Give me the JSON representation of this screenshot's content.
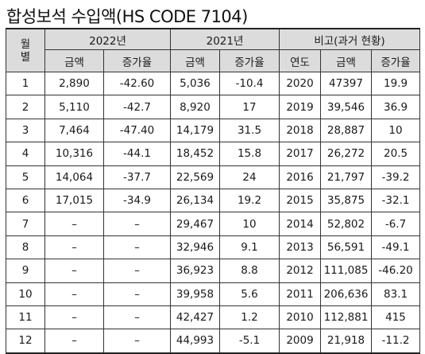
{
  "title": "합성보석 수입액(HS CODE 7104)",
  "headers": {
    "month": "월\n별",
    "y2022": "2022년",
    "y2021": "2021년",
    "compare": "비고(과거 현황)",
    "amount": "금액",
    "growth": "증가율",
    "year": "연도"
  },
  "rows": [
    [
      "1",
      "2,890",
      "-42.60",
      "5,036",
      "-10.4",
      "2020",
      "47397",
      "19.9"
    ],
    [
      "2",
      "5,110",
      "-42.7",
      "8,920",
      "17",
      "2019",
      "39,546",
      "36.9"
    ],
    [
      "3",
      "7,464",
      "-47.40",
      "14,179",
      "31.5",
      "2018",
      "28,887",
      "10"
    ],
    [
      "4",
      "10,316",
      "-44.1",
      "18,452",
      "15.8",
      "2017",
      "26,272",
      "20.5"
    ],
    [
      "5",
      "14,064",
      "-37.7",
      "22,569",
      "24",
      "2016",
      "21,797",
      "-39.2"
    ],
    [
      "6",
      "17,015",
      "-34.9",
      "26,134",
      "19.2",
      "2015",
      "35,875",
      "-32.1"
    ],
    [
      "7",
      "–",
      "–",
      "29,467",
      "10",
      "2014",
      "52,802",
      "-6.7"
    ],
    [
      "8",
      "–",
      "–",
      "32,946",
      "9.1",
      "2013",
      "56,591",
      "-49.1"
    ],
    [
      "9",
      "–",
      "–",
      "36,923",
      "8.8",
      "2012",
      "111,085",
      "-46.20"
    ],
    [
      "10",
      "–",
      "–",
      "39,958",
      "5.6",
      "2011",
      "206,636",
      "83.1"
    ],
    [
      "11",
      "–",
      "–",
      "42,427",
      "1.2",
      "2010",
      "112,881",
      "415"
    ],
    [
      "12",
      "–",
      "–",
      "44,993",
      "-5.1",
      "2009",
      "21,918",
      "-11.2"
    ]
  ]
}
